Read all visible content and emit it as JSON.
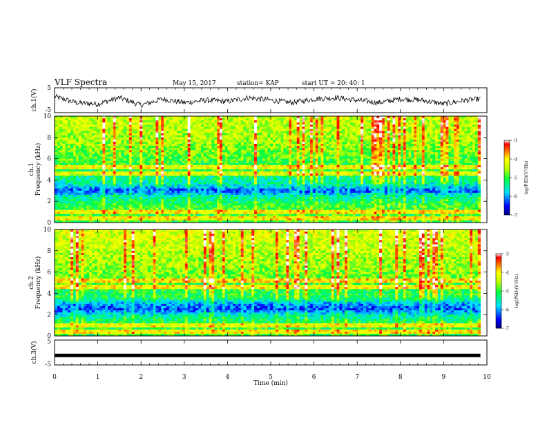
{
  "header": {
    "title": "VLF Spectra",
    "date": "May 15, 2017",
    "station": "station= KAP",
    "start": "start  UT =   20: 40: 1"
  },
  "panels": {
    "ch1_wave": {
      "ylabel": "ch.1(V)",
      "ticks": [
        "5",
        "-5"
      ]
    },
    "ch1_spec": {
      "ylabel_top": "ch.1",
      "ylabel_bottom": "Frequency (kHz)",
      "ticks": [
        "0",
        "2",
        "4",
        "6",
        "8",
        "10"
      ]
    },
    "ch2_spec": {
      "ylabel_top": "ch.2",
      "ylabel_bottom": "Frequency (kHz)",
      "ticks": [
        "0",
        "2",
        "4",
        "6",
        "8",
        "10"
      ]
    },
    "ch3_wave": {
      "ylabel": "ch.3(V)",
      "ticks": [
        "5",
        "-5"
      ]
    }
  },
  "xaxis": {
    "label": "Time (min)",
    "ticks": [
      "0",
      "1",
      "2",
      "3",
      "4",
      "5",
      "6",
      "7",
      "8",
      "9",
      "10"
    ]
  },
  "colorbar": {
    "label": "log(PSD)(V²/Hz)",
    "ticks": [
      "-3",
      "-4",
      "-5",
      "-6",
      "-7"
    ]
  },
  "chart_data": [
    {
      "type": "line",
      "name": "ch.1 waveform",
      "xlabel": "Time (min)",
      "ylabel": "ch.1(V)",
      "xlim": [
        0,
        9.85
      ],
      "ylim": [
        -5,
        5
      ],
      "x": [
        0,
        0.5,
        1,
        1.5,
        2,
        2.5,
        3,
        3.5,
        4,
        4.5,
        5,
        5.5,
        6,
        6.5,
        7,
        7.5,
        8,
        8.5,
        9,
        9.5,
        9.85
      ],
      "y": [
        1.5,
        -1,
        -1.5,
        1,
        -2,
        0.5,
        -1,
        0,
        -0.5,
        1,
        0,
        -1,
        0.5,
        1,
        0,
        -1,
        0.5,
        0,
        -1.5,
        0,
        0.5
      ]
    },
    {
      "type": "heatmap",
      "name": "ch.1 spectrogram",
      "xlabel": "Time (min)",
      "ylabel": "Frequency (kHz)",
      "xlim": [
        0,
        10
      ],
      "ylim": [
        0,
        10
      ],
      "zlim": [
        -7,
        -3
      ],
      "freq_kHz": [
        0.5,
        1.5,
        2.5,
        3,
        3.5,
        4.5,
        5.5,
        6.5,
        7.5,
        8.5,
        9.5
      ],
      "log_psd": [
        -5,
        -5,
        -5.5,
        -6.3,
        -5.6,
        -5.2,
        -5,
        -4.8,
        -4.6,
        -4.5,
        -4.4
      ]
    },
    {
      "type": "heatmap",
      "name": "ch.2 spectrogram",
      "xlabel": "Time (min)",
      "ylabel": "Frequency (kHz)",
      "xlim": [
        0,
        10
      ],
      "ylim": [
        0,
        10
      ],
      "zlim": [
        -7,
        -3
      ],
      "freq_kHz": [
        0.5,
        1.5,
        2,
        2.5,
        3,
        3.5,
        4.5,
        5.5,
        6.5,
        7.5,
        8.5,
        9.5
      ],
      "log_psd": [
        -5,
        -5.2,
        -5.6,
        -6.3,
        -6.0,
        -5.2,
        -5,
        -4.8,
        -4.6,
        -4.5,
        -4.4,
        -4.3
      ]
    },
    {
      "type": "line",
      "name": "ch.3 waveform",
      "xlabel": "Time (min)",
      "ylabel": "ch.3(V)",
      "xlim": [
        0,
        9.85
      ],
      "ylim": [
        -5,
        5
      ],
      "x": [
        0,
        9.85
      ],
      "y": [
        -1.2,
        -1.2
      ]
    }
  ]
}
